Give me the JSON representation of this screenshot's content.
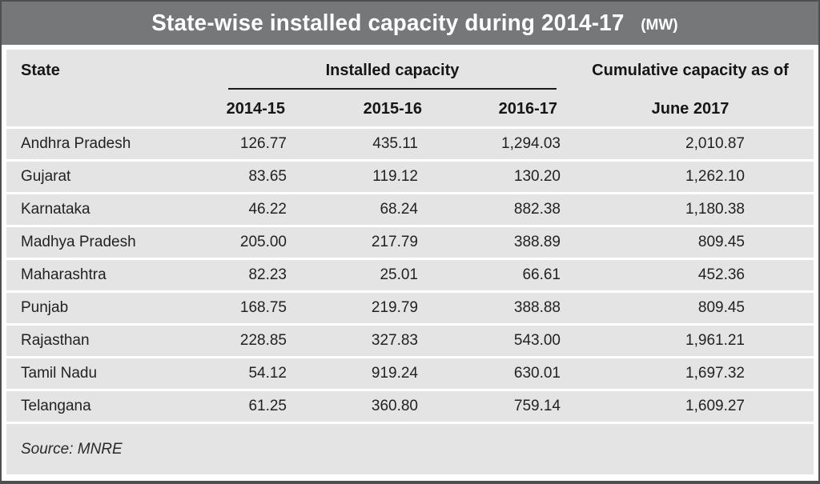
{
  "title": {
    "main": "State-wise installed capacity during 2014-17",
    "unit": "(MW)"
  },
  "table": {
    "state_header": "State",
    "group_header": "Installed capacity",
    "year_headers": [
      "2014-15",
      "2015-16",
      "2016-17"
    ],
    "cumulative_header_line1": "Cumulative capacity as of",
    "cumulative_header_line2": "June 2017",
    "rows": [
      {
        "state": "Andhra Pradesh",
        "y1": "126.77",
        "y2": "435.11",
        "y3": "1,294.03",
        "cum": "2,010.87"
      },
      {
        "state": "Gujarat",
        "y1": "83.65",
        "y2": "119.12",
        "y3": "130.20",
        "cum": "1,262.10"
      },
      {
        "state": "Karnataka",
        "y1": "46.22",
        "y2": "68.24",
        "y3": "882.38",
        "cum": "1,180.38"
      },
      {
        "state": "Madhya Pradesh",
        "y1": "205.00",
        "y2": "217.79",
        "y3": "388.89",
        "cum": "809.45"
      },
      {
        "state": "Maharashtra",
        "y1": "82.23",
        "y2": "25.01",
        "y3": "66.61",
        "cum": "452.36"
      },
      {
        "state": "Punjab",
        "y1": "168.75",
        "y2": "219.79",
        "y3": "388.88",
        "cum": "809.45"
      },
      {
        "state": "Rajasthan",
        "y1": "228.85",
        "y2": "327.83",
        "y3": "543.00",
        "cum": "1,961.21"
      },
      {
        "state": "Tamil Nadu",
        "y1": "54.12",
        "y2": "919.24",
        "y3": "630.01",
        "cum": "1,697.32"
      },
      {
        "state": "Telangana",
        "y1": "61.25",
        "y2": "360.80",
        "y3": "759.14",
        "cum": "1,609.27"
      }
    ]
  },
  "source_note": "Source: MNRE",
  "colors": {
    "titlebar_bg": "#757779",
    "panel_bg": "#e4e4e4",
    "title_text": "#ffffff",
    "body_text": "#222222",
    "row_separator": "#ffffff",
    "frame_border": "#4d4f51"
  },
  "chart_data": {
    "type": "table",
    "title": "State-wise installed capacity during 2014-17 (MW)",
    "unit": "MW",
    "columns": [
      "State",
      "Installed capacity 2014-15",
      "Installed capacity 2015-16",
      "Installed capacity 2016-17",
      "Cumulative capacity as of June 2017"
    ],
    "rows": [
      [
        "Andhra Pradesh",
        126.77,
        435.11,
        1294.03,
        2010.87
      ],
      [
        "Gujarat",
        83.65,
        119.12,
        130.2,
        1262.1
      ],
      [
        "Karnataka",
        46.22,
        68.24,
        882.38,
        1180.38
      ],
      [
        "Madhya Pradesh",
        205.0,
        217.79,
        388.89,
        809.45
      ],
      [
        "Maharashtra",
        82.23,
        25.01,
        66.61,
        452.36
      ],
      [
        "Punjab",
        168.75,
        219.79,
        388.88,
        809.45
      ],
      [
        "Rajasthan",
        228.85,
        327.83,
        543.0,
        1961.21
      ],
      [
        "Tamil Nadu",
        54.12,
        919.24,
        630.01,
        1697.32
      ],
      [
        "Telangana",
        61.25,
        360.8,
        759.14,
        1609.27
      ]
    ],
    "source": "MNRE"
  }
}
